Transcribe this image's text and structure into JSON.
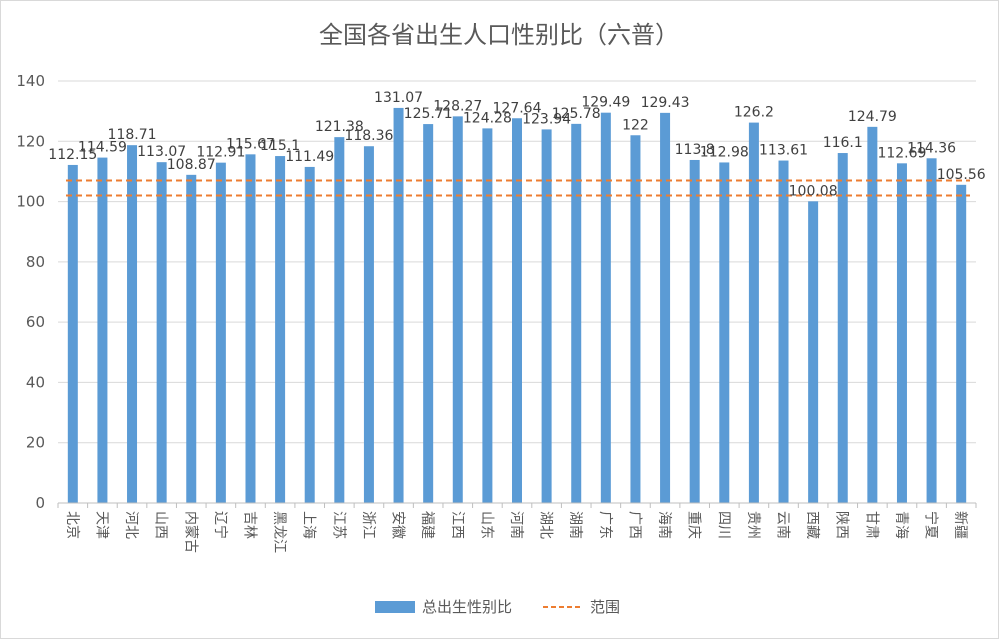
{
  "chart_data": {
    "type": "bar",
    "title": "全国各省出生人口性别比（六普）",
    "categories": [
      "北京",
      "天津",
      "河北",
      "山西",
      "内蒙古",
      "辽宁",
      "吉林",
      "黑龙江",
      "上海",
      "江苏",
      "浙江",
      "安徽",
      "福建",
      "江西",
      "山东",
      "河南",
      "湖北",
      "湖南",
      "广东",
      "广西",
      "海南",
      "重庆",
      "四川",
      "贵州",
      "云南",
      "西藏",
      "陕西",
      "甘肃",
      "青海",
      "宁夏",
      "新疆"
    ],
    "series": [
      {
        "name": "总出生性别比",
        "color": "#5b9bd5",
        "values": [
          112.15,
          114.59,
          118.71,
          113.07,
          108.87,
          112.91,
          115.67,
          115.1,
          111.49,
          121.38,
          118.36,
          131.07,
          125.71,
          128.27,
          124.28,
          127.64,
          123.94,
          125.78,
          129.49,
          122,
          129.43,
          113.8,
          112.98,
          126.2,
          113.61,
          100.08,
          116.1,
          124.79,
          112.69,
          114.36,
          105.56
        ],
        "labels": [
          "112.15",
          "114.59",
          "118.71",
          "113.07",
          "108.87",
          "112.91",
          "115.67",
          "115.1",
          "111.49",
          "121.38",
          "118.36",
          "131.07",
          "125.71",
          "128.27",
          "124.28",
          "127.64",
          "123.94",
          "125.78",
          "129.49",
          "122",
          "129.43",
          "113.8",
          "112.98",
          "126.2",
          "113.61",
          "100.08",
          "116.1",
          "124.79",
          "112.69",
          "114.36",
          "105.56"
        ]
      }
    ],
    "reference_lines": {
      "name": "范围",
      "color": "#ed7d31",
      "values": [
        102,
        107
      ]
    },
    "ylim": [
      0,
      140
    ],
    "yticks": [
      "0",
      "20",
      "40",
      "60",
      "80",
      "100",
      "120",
      "140"
    ],
    "grid": true,
    "legend": "bottom"
  }
}
